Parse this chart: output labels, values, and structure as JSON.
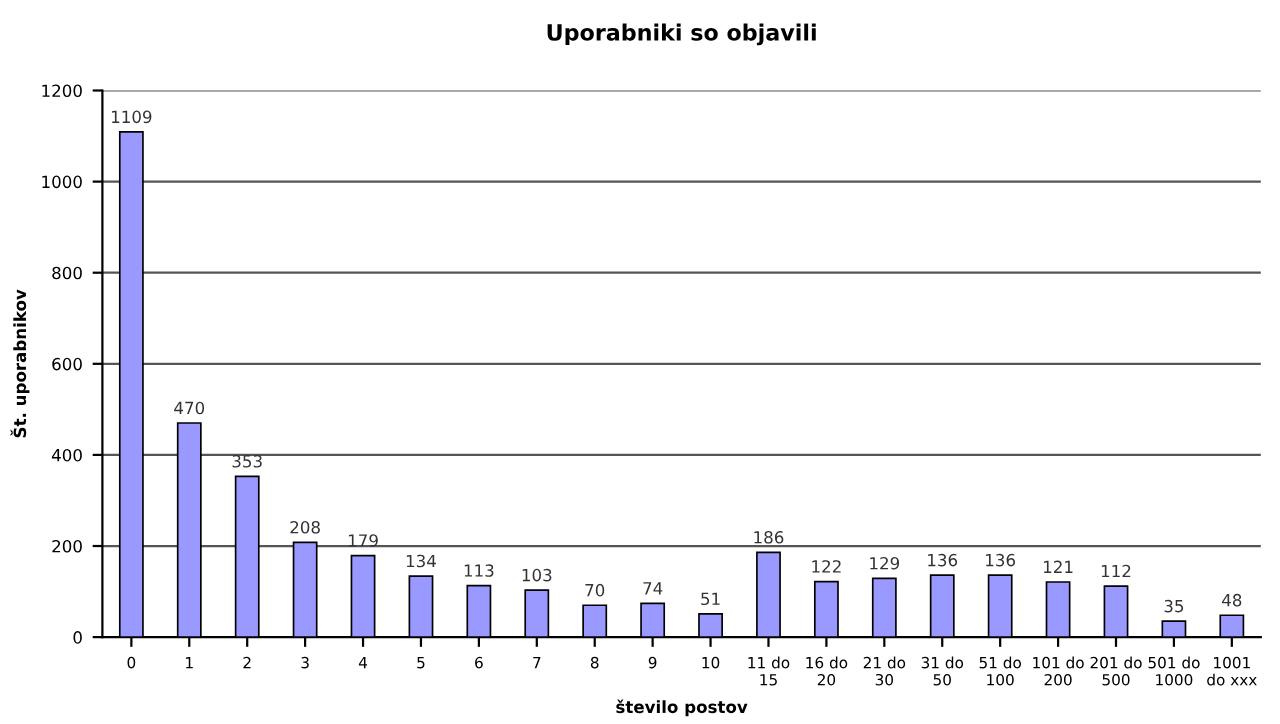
{
  "chart_data": {
    "type": "bar",
    "title": "Uporabniki so objavili",
    "xlabel": "število postov",
    "ylabel": "Št. uporabnikov",
    "categories": [
      "0",
      "1",
      "2",
      "3",
      "4",
      "5",
      "6",
      "7",
      "8",
      "9",
      "10",
      "11 do\n15",
      "16 do\n20",
      "21 do\n30",
      "31 do\n50",
      "51 do\n100",
      "101 do\n200",
      "201 do\n500",
      "501 do\n1000",
      "1001\ndo xxx"
    ],
    "values": [
      1109,
      470,
      353,
      208,
      179,
      134,
      113,
      103,
      70,
      74,
      51,
      186,
      122,
      129,
      136,
      136,
      121,
      112,
      35,
      48
    ],
    "color": "#9999ff",
    "ylim": [
      0,
      1200
    ],
    "yticks": [
      0,
      200,
      400,
      600,
      800,
      1000,
      1200
    ],
    "grid": "y",
    "data_labels": true,
    "legend": false
  }
}
